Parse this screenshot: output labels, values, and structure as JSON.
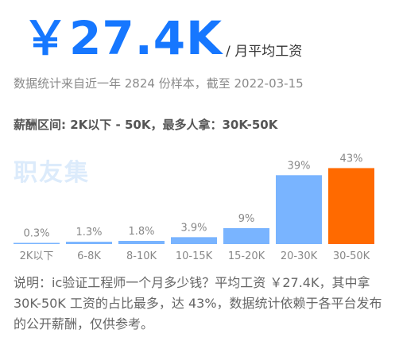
{
  "header": {
    "salary": "￥27.4K",
    "unit": "/ 月平均工资",
    "sample_note": "数据统计来自近一年 2824 份样本，截至 2022-03-15",
    "range_note": "薪酬区间: 2K以下 - 50K，最多人拿：30K-50K"
  },
  "watermark": "职友集",
  "chart_data": {
    "type": "bar",
    "categories": [
      "2K以下",
      "6-8K",
      "8-10K",
      "10-15K",
      "15-20K",
      "20-30K",
      "30-50K"
    ],
    "values": [
      0.3,
      1.3,
      1.8,
      3.9,
      9,
      39,
      43
    ],
    "data_labels": [
      "0.3%",
      "1.3%",
      "1.8%",
      "3.9%",
      "9%",
      "39%",
      "43%"
    ],
    "highlight_index": 6,
    "colors": {
      "bar": "#79b4ff",
      "highlight": "#ff6a00",
      "label": "#888888"
    },
    "title": "",
    "xlabel": "",
    "ylabel": "",
    "ylim": [
      0,
      45
    ],
    "grid": false
  },
  "description": "说明：ic验证工程师一个月多少钱？平均工资 ￥27.4K，其中拿 30K-50K 工资的占比最多，达 43%，数据统计依赖于各平台发布的公开薪酬，仅供参考。"
}
